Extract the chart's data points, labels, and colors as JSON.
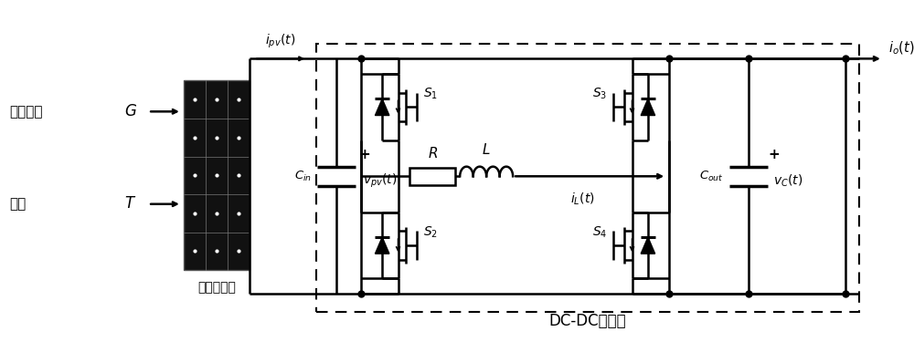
{
  "bg_color": "#ffffff",
  "line_color": "#000000",
  "figsize": [
    10.0,
    3.75
  ],
  "dpi": 100,
  "labels": {
    "guang_zhao": "光照强度",
    "G": "$G$",
    "wen_du": "温度",
    "T": "$T$",
    "panel": "光伏电池板",
    "i_pv": "$i_{pv}(t)$",
    "C_in": "$C_{in}$",
    "v_pv": "$v_{pv}(t)$",
    "R": "$R$",
    "L": "$L$",
    "i_L": "$i_L(t)$",
    "S1": "$S_1$",
    "S2": "$S_2$",
    "S3": "$S_3$",
    "S4": "$S_4$",
    "C_out": "$C_{out}$",
    "v_C": "$v_C(t)$",
    "i_o": "$i_o(t)$",
    "dc_dc": "DC-DC变换器",
    "plus": "+"
  }
}
